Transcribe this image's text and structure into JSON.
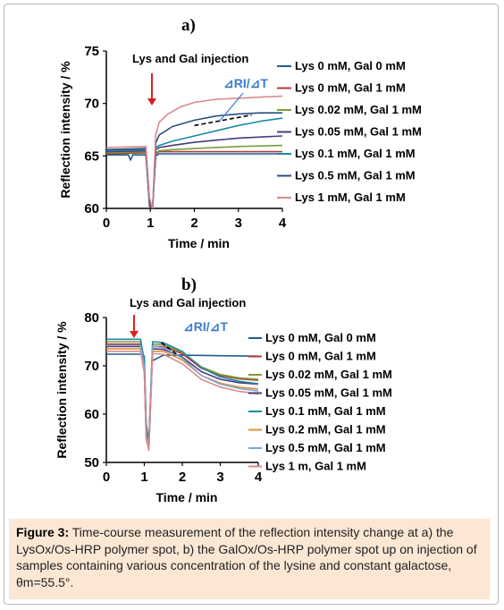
{
  "figure": {
    "caption_label": "Figure 3:",
    "caption_text": "Time-course measurement of the reflection intensity change at a) the LysOx/Os-HRP polymer spot, b) the GalOx/Os-HRP polymer spot up on injection of samples containing various concentration of the lysine and constant galactose, θm=55.5°."
  },
  "chart_data": [
    {
      "panel_label": "a)",
      "type": "line",
      "xlabel": "Time / min",
      "ylabel": "Reflection intensity / %",
      "xlim": [
        0,
        4
      ],
      "ylim": [
        60,
        75
      ],
      "xticks": [
        "0",
        "1",
        "2",
        "3",
        "4"
      ],
      "yticks": [
        "60",
        "65",
        "70",
        "75"
      ],
      "annotation_injection": "Lys and Gal injection",
      "injection_time": 1.0,
      "annotation_slope": "⊿RI/⊿T",
      "legend_position": "right",
      "series": [
        {
          "name": "Lys 0 mM, Gal 0 mM",
          "color": "#1f5d94",
          "x": [
            0,
            0.5,
            0.55,
            0.6,
            0.9,
            0.98,
            1.05,
            1.12,
            1.2,
            1.5,
            2,
            3,
            4
          ],
          "y": [
            65.1,
            65.1,
            64.6,
            65.1,
            65.1,
            60.5,
            60,
            65.0,
            65.2,
            65.2,
            65.2,
            65.2,
            65.2
          ]
        },
        {
          "name": "Lys 0 mM, Gal 1 mM",
          "color": "#b23b38",
          "x": [
            0,
            0.9,
            0.98,
            1.05,
            1.12,
            1.2,
            2,
            3,
            4
          ],
          "y": [
            65.2,
            65.3,
            60.2,
            60,
            65.2,
            65.4,
            65.4,
            65.4,
            65.4
          ]
        },
        {
          "name": "Lys 0.02 mM, Gal 1 mM",
          "color": "#7c9c3a",
          "x": [
            0,
            0.9,
            0.98,
            1.05,
            1.12,
            1.2,
            1.5,
            2,
            3,
            4
          ],
          "y": [
            65.3,
            65.4,
            60.4,
            60,
            65.3,
            65.5,
            65.6,
            65.7,
            65.9,
            66.0
          ]
        },
        {
          "name": "Lys 0.05 mM, Gal 1 mM",
          "color": "#4c3a7a",
          "x": [
            0,
            0.9,
            0.98,
            1.05,
            1.12,
            1.2,
            1.5,
            2,
            2.5,
            3,
            3.5,
            4
          ],
          "y": [
            65.4,
            65.5,
            60.4,
            60,
            65.6,
            65.8,
            66.0,
            66.3,
            66.5,
            66.7,
            66.8,
            66.9
          ]
        },
        {
          "name": "Lys 0.1 mM, Gal 1 mM",
          "color": "#1a8aa5",
          "x": [
            0,
            0.9,
            0.98,
            1.05,
            1.12,
            1.2,
            1.5,
            2,
            2.5,
            3,
            3.5,
            4
          ],
          "y": [
            65.5,
            65.6,
            60.6,
            60,
            65.8,
            66.0,
            66.4,
            66.9,
            67.4,
            67.9,
            68.3,
            68.6
          ]
        },
        {
          "name": "Lys 0.5 mM, Gal 1 mM",
          "color": "#2b4e7c",
          "x": [
            0,
            0.9,
            0.98,
            1.05,
            1.12,
            1.2,
            1.5,
            2,
            2.5,
            3,
            3.5,
            4
          ],
          "y": [
            65.6,
            65.7,
            60.8,
            60,
            66.2,
            67.0,
            67.8,
            68.4,
            68.8,
            69.0,
            69.1,
            69.1
          ]
        },
        {
          "name": "Lys 1 mM, Gal 1 mM",
          "color": "#d98a8c",
          "x": [
            0,
            0.9,
            0.98,
            1.05,
            1.12,
            1.2,
            1.4,
            1.7,
            2,
            2.5,
            3,
            3.5,
            4
          ],
          "y": [
            65.8,
            65.9,
            61.0,
            60,
            67.0,
            68.2,
            69.0,
            69.7,
            70.1,
            70.4,
            70.5,
            70.6,
            70.7
          ]
        }
      ]
    },
    {
      "panel_label": "b)",
      "type": "line",
      "xlabel": "Time / min",
      "ylabel": "Reflection intensity / %",
      "xlim": [
        0,
        4
      ],
      "ylim": [
        50,
        80
      ],
      "xticks": [
        "0",
        "1",
        "2",
        "3",
        "4"
      ],
      "yticks": [
        "50",
        "60",
        "70",
        "80"
      ],
      "annotation_injection": "Lys and Gal injection",
      "injection_time": 0.95,
      "annotation_slope": "⊿RI/⊿T",
      "legend_position": "right",
      "series": [
        {
          "name": "Lys 0 mM, Gal 0 mM",
          "color": "#1f5d94",
          "x": [
            0,
            0.9,
            1.0,
            1.05,
            1.12,
            1.2,
            1.5,
            2,
            3,
            4
          ],
          "y": [
            72.4,
            72.4,
            72.0,
            58.0,
            54.0,
            71.0,
            72.2,
            72.2,
            72.1,
            72.0
          ]
        },
        {
          "name": "Lys 0 mM, Gal 1 mM",
          "color": "#b23b38",
          "x": [
            0,
            0.9,
            1.0,
            1.05,
            1.12,
            1.22,
            1.5,
            2,
            2.5,
            3,
            3.5,
            4
          ],
          "y": [
            74.5,
            74.5,
            70.0,
            56.0,
            53.5,
            74.0,
            74.0,
            72.5,
            69.5,
            68.0,
            67.3,
            67.0
          ]
        },
        {
          "name": "Lys 0.02 mM, Gal 1 mM",
          "color": "#7c9c3a",
          "x": [
            0,
            0.9,
            1.0,
            1.05,
            1.12,
            1.22,
            1.5,
            2,
            2.5,
            3,
            3.5,
            4
          ],
          "y": [
            75.0,
            75.0,
            70.5,
            56.5,
            54.0,
            74.5,
            74.4,
            72.8,
            69.8,
            68.2,
            67.5,
            67.2
          ]
        },
        {
          "name": "Lys 0.05 mM, Gal 1 mM",
          "color": "#4c3a7a",
          "x": [
            0,
            0.9,
            1.0,
            1.05,
            1.12,
            1.22,
            1.5,
            2,
            2.5,
            3,
            3.5,
            4
          ],
          "y": [
            74.0,
            74.0,
            69.5,
            55.5,
            53.0,
            73.5,
            73.4,
            71.8,
            68.8,
            67.2,
            66.5,
            66.2
          ]
        },
        {
          "name": "Lys 0.1 mM, Gal 1 mM",
          "color": "#1a8aa5",
          "x": [
            0,
            0.9,
            1.0,
            1.05,
            1.12,
            1.22,
            1.5,
            2,
            2.5,
            3,
            3.5,
            4
          ],
          "y": [
            75.5,
            75.5,
            71.0,
            57.0,
            54.5,
            75.0,
            74.8,
            73.0,
            69.6,
            67.7,
            66.8,
            66.3
          ]
        },
        {
          "name": "Lys 0.2 mM, Gal 1 mM",
          "color": "#e0913a",
          "x": [
            0,
            0.9,
            1.0,
            1.05,
            1.12,
            1.22,
            1.5,
            2,
            2.5,
            3,
            3.5,
            4
          ],
          "y": [
            73.5,
            73.5,
            69.0,
            55.0,
            52.8,
            73.0,
            73.0,
            71.2,
            68.0,
            66.4,
            65.6,
            65.2
          ]
        },
        {
          "name": "Lys 0.5 mM, Gal 1 mM",
          "color": "#7fa6d6",
          "x": [
            0,
            0.9,
            1.0,
            1.05,
            1.12,
            1.22,
            1.5,
            2,
            2.5,
            3,
            3.5,
            4
          ],
          "y": [
            74.2,
            74.2,
            69.8,
            55.8,
            53.3,
            74.0,
            73.8,
            71.6,
            68.0,
            66.2,
            65.3,
            64.8
          ]
        },
        {
          "name": "Lys 1 m, Gal 1 mM",
          "color": "#d98a8c",
          "x": [
            0,
            0.9,
            1.0,
            1.05,
            1.12,
            1.22,
            1.5,
            2,
            2.5,
            3,
            3.5,
            4
          ],
          "y": [
            73.0,
            73.0,
            68.5,
            54.8,
            52.5,
            72.5,
            72.4,
            70.4,
            67.2,
            65.6,
            64.7,
            64.2
          ]
        }
      ]
    }
  ]
}
